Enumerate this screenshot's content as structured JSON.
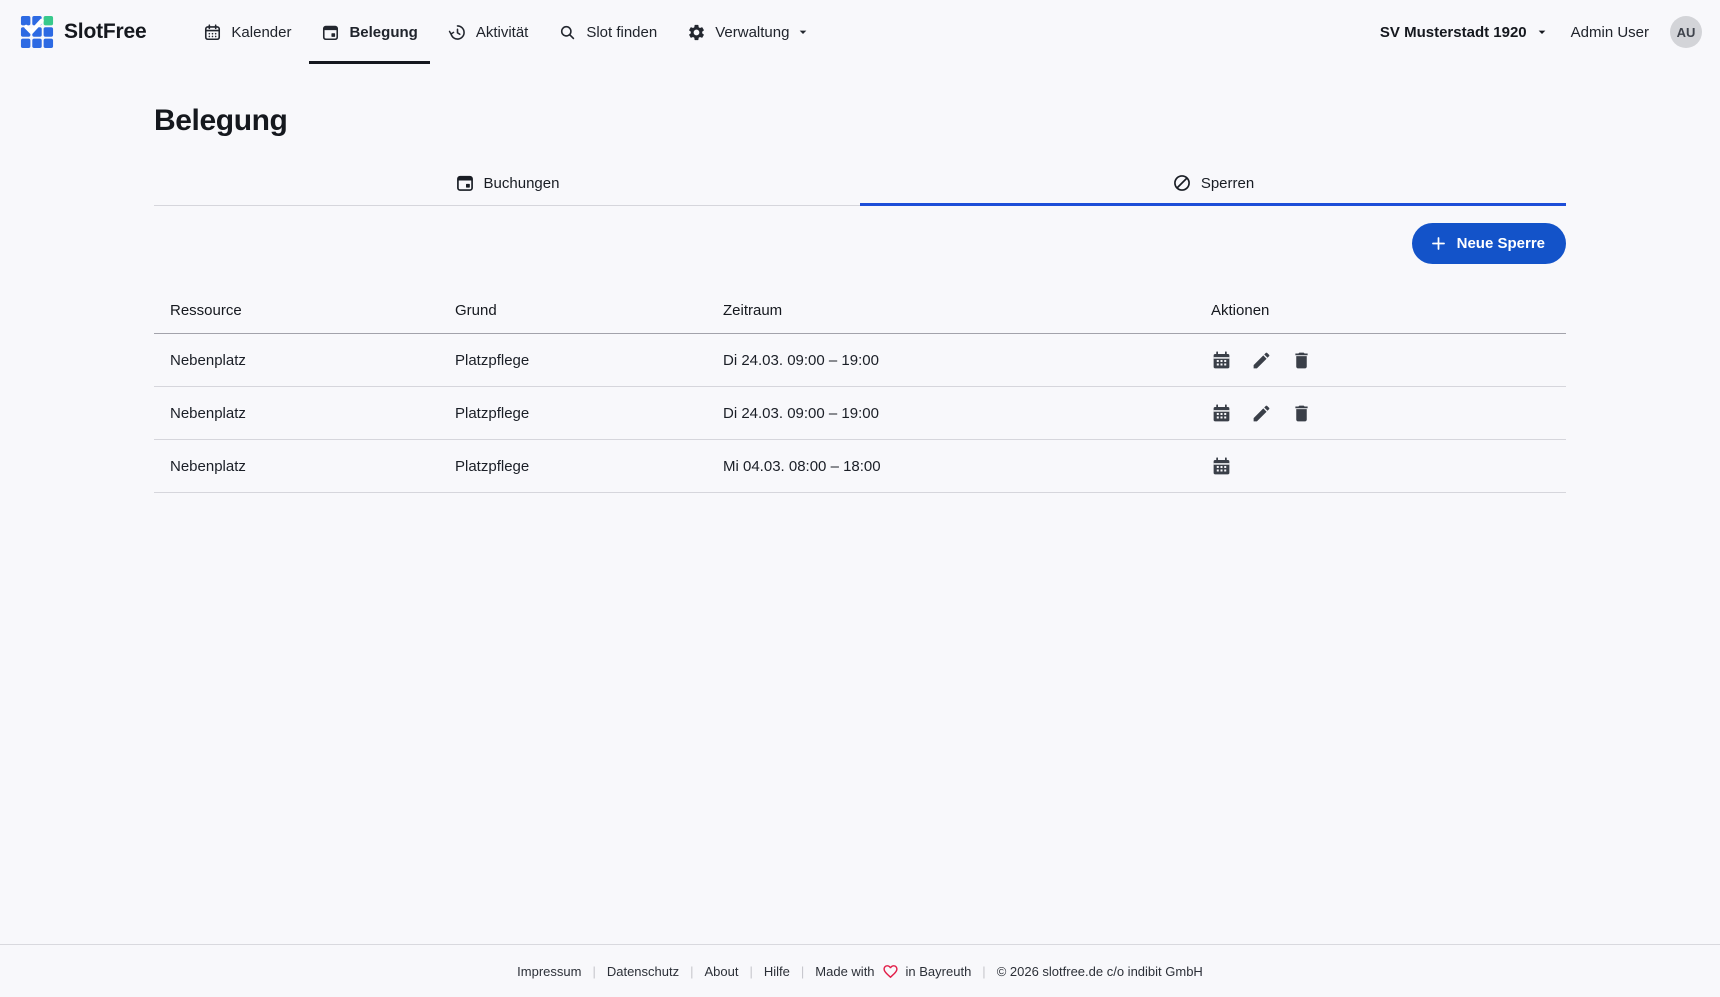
{
  "brand": {
    "name": "SlotFree"
  },
  "nav": {
    "items": [
      {
        "label": "Kalender",
        "icon": "calendar-icon",
        "active": false
      },
      {
        "label": "Belegung",
        "icon": "calendar-event-icon",
        "active": true
      },
      {
        "label": "Aktivität",
        "icon": "history-icon",
        "active": false
      },
      {
        "label": "Slot finden",
        "icon": "search-icon",
        "active": false
      },
      {
        "label": "Verwaltung",
        "icon": "gear-icon",
        "active": false,
        "has_dropdown": true
      }
    ]
  },
  "user": {
    "team": "SV Musterstadt 1920",
    "name": "Admin User",
    "initials": "AU"
  },
  "page": {
    "title": "Belegung"
  },
  "tabs": [
    {
      "label": "Buchungen",
      "icon": "calendar-event-icon",
      "active": false
    },
    {
      "label": "Sperren",
      "icon": "ban-icon",
      "active": true
    }
  ],
  "toolbar": {
    "new_sperre_label": "Neue Sperre"
  },
  "table": {
    "columns": [
      "Ressource",
      "Grund",
      "Zeitraum",
      "Aktionen"
    ],
    "rows": [
      {
        "ressource": "Nebenplatz",
        "grund": "Platzpflege",
        "zeitraum": "Di 24.03. 09:00 – 19:00",
        "actions": [
          "calendar",
          "edit",
          "delete"
        ]
      },
      {
        "ressource": "Nebenplatz",
        "grund": "Platzpflege",
        "zeitraum": "Di 24.03. 09:00 – 19:00",
        "actions": [
          "calendar",
          "edit",
          "delete"
        ]
      },
      {
        "ressource": "Nebenplatz",
        "grund": "Platzpflege",
        "zeitraum": "Mi 04.03. 08:00 – 18:00",
        "actions": [
          "calendar"
        ]
      }
    ]
  },
  "footer": {
    "links": [
      "Impressum",
      "Datenschutz",
      "About",
      "Hilfe"
    ],
    "separator": "|",
    "made_with_prefix": "Made with",
    "made_with_suffix": "in Bayreuth",
    "copyright": "© 2026 slotfree.de c/o indibit GmbH"
  },
  "colors": {
    "accent_blue": "#1353c9",
    "tab_active_blue": "#1d4ed8",
    "logo_blue": "#2d6ae3",
    "logo_green": "#38c98c",
    "heart_red": "#e11d48"
  }
}
